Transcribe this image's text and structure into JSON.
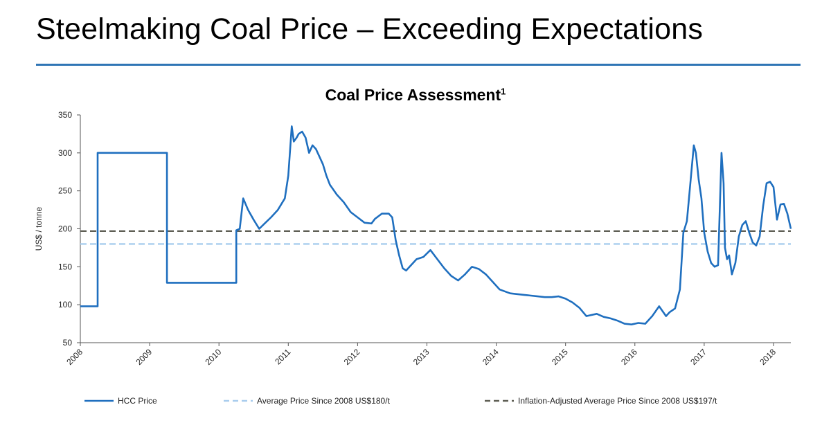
{
  "slide": {
    "title": "Steelmaking Coal Price – Exceeding Expectations"
  },
  "chart_data": {
    "type": "line",
    "title": "Coal Price Assessment",
    "title_superscript": "1",
    "xlabel": "",
    "ylabel": "US$ / tonne",
    "xlim": [
      2008,
      2018.25
    ],
    "ylim": [
      50,
      350
    ],
    "y_ticks": [
      50,
      100,
      150,
      200,
      250,
      300,
      350
    ],
    "x_ticks": [
      "2008",
      "2009",
      "2010",
      "2011",
      "2012",
      "2013",
      "2014",
      "2015",
      "2016",
      "2017",
      "2018"
    ],
    "grid": false,
    "colors": {
      "hcc": "#1f6fbf",
      "average": "#a9cdee",
      "inflation": "#5f5f55"
    },
    "series": [
      {
        "name": "HCC Price",
        "style": "solid",
        "x": [
          2008.0,
          2008.25,
          2008.25,
          2009.25,
          2009.25,
          2010.25,
          2010.25,
          2010.3,
          2010.35,
          2010.42,
          2010.5,
          2010.58,
          2010.67,
          2010.75,
          2010.85,
          2010.95,
          2011.0,
          2011.05,
          2011.08,
          2011.12,
          2011.15,
          2011.2,
          2011.25,
          2011.3,
          2011.35,
          2011.4,
          2011.45,
          2011.5,
          2011.55,
          2011.6,
          2011.7,
          2011.8,
          2011.9,
          2012.0,
          2012.1,
          2012.2,
          2012.25,
          2012.35,
          2012.45,
          2012.5,
          2012.55,
          2012.6,
          2012.65,
          2012.7,
          2012.75,
          2012.85,
          2012.95,
          2013.05,
          2013.15,
          2013.25,
          2013.35,
          2013.45,
          2013.55,
          2013.65,
          2013.75,
          2013.85,
          2013.95,
          2014.05,
          2014.2,
          2014.3,
          2014.4,
          2014.5,
          2014.6,
          2014.7,
          2014.8,
          2014.9,
          2015.0,
          2015.1,
          2015.2,
          2015.3,
          2015.35,
          2015.45,
          2015.55,
          2015.65,
          2015.75,
          2015.85,
          2015.95,
          2016.05,
          2016.15,
          2016.25,
          2016.35,
          2016.45,
          2016.5,
          2016.58,
          2016.65,
          2016.7,
          2016.75,
          2016.8,
          2016.85,
          2016.88,
          2016.92,
          2016.96,
          2017.0,
          2017.05,
          2017.1,
          2017.15,
          2017.2,
          2017.25,
          2017.28,
          2017.3,
          2017.33,
          2017.36,
          2017.4,
          2017.45,
          2017.5,
          2017.55,
          2017.6,
          2017.65,
          2017.7,
          2017.75,
          2017.8,
          2017.85,
          2017.9,
          2017.95,
          2018.0,
          2018.05,
          2018.1,
          2018.15,
          2018.2,
          2018.25
        ],
        "values": [
          98,
          98,
          300,
          300,
          129,
          129,
          198,
          200,
          240,
          225,
          212,
          200,
          208,
          215,
          225,
          240,
          270,
          335,
          315,
          320,
          325,
          328,
          320,
          300,
          310,
          305,
          295,
          285,
          270,
          258,
          245,
          235,
          222,
          215,
          208,
          207,
          213,
          220,
          220,
          215,
          185,
          165,
          148,
          145,
          150,
          160,
          163,
          172,
          160,
          148,
          138,
          132,
          140,
          150,
          147,
          140,
          130,
          120,
          115,
          114,
          113,
          112,
          111,
          110,
          110,
          111,
          108,
          103,
          96,
          85,
          86,
          88,
          84,
          82,
          79,
          75,
          74,
          76,
          75,
          85,
          98,
          85,
          90,
          95,
          120,
          195,
          210,
          260,
          310,
          300,
          265,
          240,
          195,
          170,
          155,
          150,
          152,
          300,
          260,
          175,
          160,
          165,
          140,
          155,
          190,
          205,
          210,
          195,
          182,
          178,
          190,
          230,
          260,
          262,
          255,
          212,
          232,
          233,
          220,
          200
        ]
      },
      {
        "name": "Average Price Since 2008 US$180/t",
        "style": "dashed",
        "x": [
          2008.0,
          2018.25
        ],
        "values": [
          180,
          180
        ]
      },
      {
        "name": "Inflation-Adjusted Average Price Since 2008 US$197/t",
        "style": "dashed",
        "x": [
          2008.0,
          2018.25
        ],
        "values": [
          197,
          197
        ]
      }
    ],
    "legend": {
      "placement": "bottom",
      "entries": [
        {
          "label": "HCC Price",
          "color": "#1f6fbf",
          "style": "solid"
        },
        {
          "label": "Average Price Since 2008 US$180/t",
          "color": "#a9cdee",
          "style": "dashed"
        },
        {
          "label": "Inflation-Adjusted Average Price Since 2008 US$197/t",
          "color": "#5f5f55",
          "style": "dashed"
        }
      ]
    }
  }
}
